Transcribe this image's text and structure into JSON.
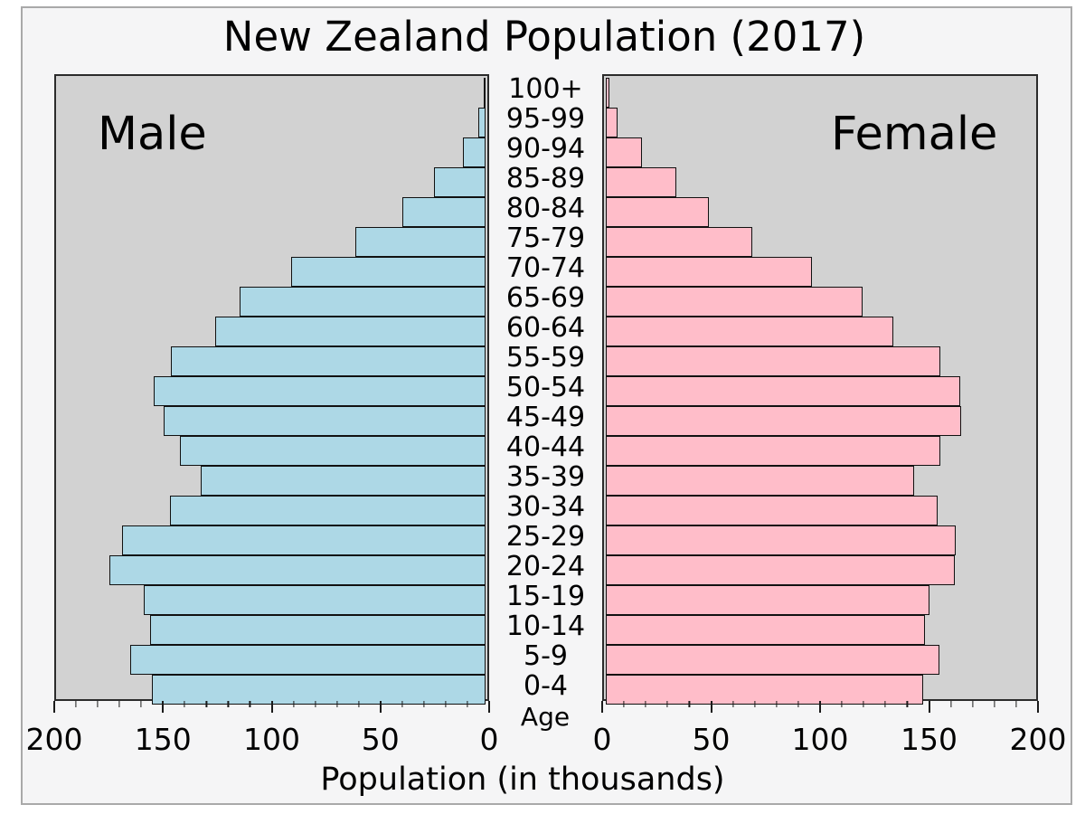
{
  "title": "New Zealand Population (2017)",
  "panel_labels": {
    "male": "Male",
    "female": "Female"
  },
  "axis": {
    "x_label": "Population (in thousands)",
    "age_label": "Age",
    "max": 200,
    "major_tick_values": [
      0,
      50,
      100,
      150,
      200
    ],
    "minor_tick_step": 10,
    "left_tick_labels_left_to_right": [
      "200",
      "150",
      "100",
      "50",
      "0"
    ],
    "right_tick_labels_left_to_right": [
      "0",
      "50",
      "100",
      "150",
      "200"
    ]
  },
  "colors": {
    "male_bar": "#add8e6",
    "female_bar": "#ffbdc9",
    "bar_edge": "#111111",
    "panel_bg": "#d2d2d2",
    "panel_edge": "#2b2b2b",
    "figure_bg": "#f5f5f6",
    "figure_border": "#a9a9a9",
    "text": "#000000"
  },
  "chart_data": {
    "type": "bar",
    "subtype": "population-pyramid",
    "title": "New Zealand Population (2017)",
    "xlabel": "Population (in thousands)",
    "units": "thousands",
    "xlim": [
      0,
      200
    ],
    "grid": false,
    "categories_top_to_bottom": [
      "100+",
      "95-99",
      "90-94",
      "85-89",
      "80-84",
      "75-79",
      "70-74",
      "65-69",
      "60-64",
      "55-59",
      "50-54",
      "45-49",
      "40-44",
      "35-39",
      "30-34",
      "25-29",
      "20-24",
      "15-19",
      "10-14",
      "5-9",
      "0-4"
    ],
    "series": [
      {
        "name": "Male",
        "side": "left",
        "values": [
          0.5,
          3.5,
          10.5,
          24,
          39,
          61,
          91,
          115,
          126.5,
          147,
          155,
          150.5,
          143,
          133,
          147.5,
          170,
          176,
          160,
          157,
          166,
          156
        ]
      },
      {
        "name": "Female",
        "side": "right",
        "values": [
          1.5,
          5.5,
          17,
          33,
          48,
          68.5,
          96,
          120,
          134,
          156,
          165.5,
          166,
          156,
          144,
          155,
          163.5,
          163,
          151,
          149,
          155.5,
          148
        ]
      }
    ]
  }
}
